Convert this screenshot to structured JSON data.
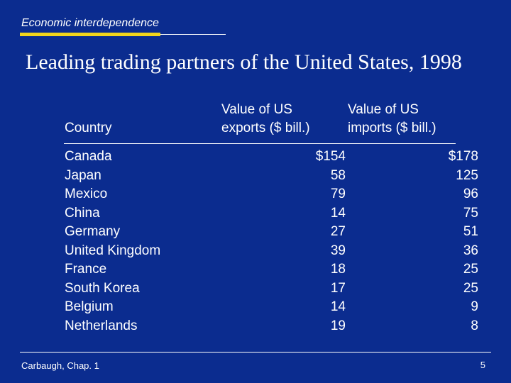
{
  "header": {
    "section_label": "Economic interdependence",
    "title": "Leading trading partners of the United States, 1998"
  },
  "table": {
    "columns": {
      "country": "Country",
      "exports": "Value of US exports ($ bill.)",
      "imports": "Value of US imports ($ bill.)"
    },
    "rows": [
      {
        "country": "Canada",
        "exports": "$154",
        "imports": "$178"
      },
      {
        "country": "Japan",
        "exports": "58",
        "imports": "125"
      },
      {
        "country": "Mexico",
        "exports": "79",
        "imports": "96"
      },
      {
        "country": "China",
        "exports": "14",
        "imports": "75"
      },
      {
        "country": "Germany",
        "exports": "27",
        "imports": "51"
      },
      {
        "country": "United Kingdom",
        "exports": "39",
        "imports": "36"
      },
      {
        "country": "France",
        "exports": "18",
        "imports": "25"
      },
      {
        "country": "South Korea",
        "exports": "17",
        "imports": "25"
      },
      {
        "country": "Belgium",
        "exports": "14",
        "imports": "9"
      },
      {
        "country": "Netherlands",
        "exports": "19",
        "imports": "8"
      }
    ]
  },
  "footer": {
    "source": "Carbaugh, Chap. 1",
    "page_number": "5"
  },
  "colors": {
    "background": "#0b2c8f",
    "accent": "#f2d51c",
    "text": "#ffffff"
  }
}
